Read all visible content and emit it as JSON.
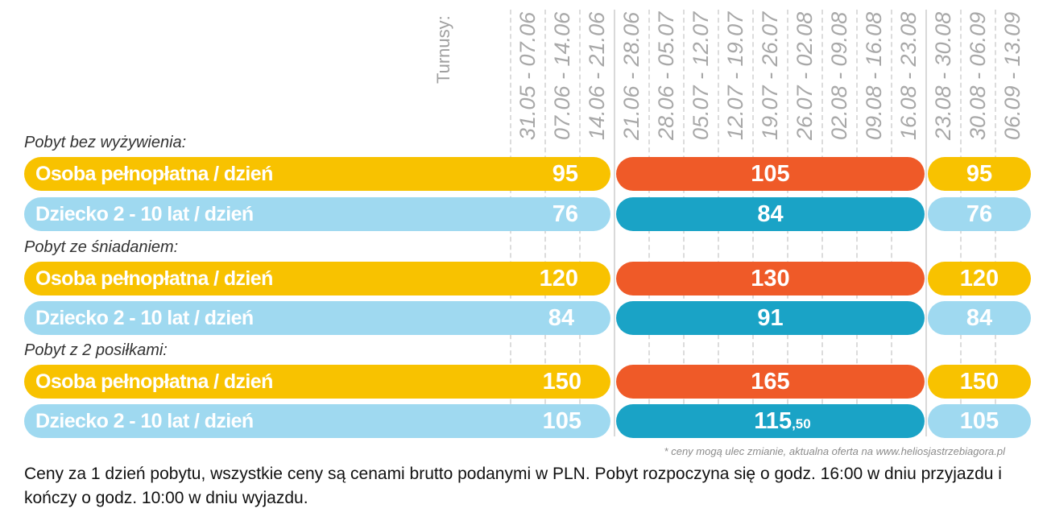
{
  "header": {
    "turnusy_label": "Turnusy:",
    "periods": [
      "31.05 - 07.06",
      "07.06 - 14.06",
      "14.06 - 21.06",
      "21.06 - 28.06",
      "28.06 - 05.07",
      "05.07 - 12.07",
      "12.07 - 19.07",
      "19.07 - 26.07",
      "26.07 - 02.08",
      "02.08 - 09.08",
      "09.08 - 16.08",
      "16.08 - 23.08",
      "23.08 - 30.08",
      "30.08 - 06.09",
      "06.09 - 13.09"
    ]
  },
  "sections": [
    {
      "title": "Pobyt bez wyżywienia:",
      "adult": {
        "label": "Osoba pełnopłatna / dzień",
        "low": "95",
        "high": "105",
        "high_fraction": "",
        "late": "95"
      },
      "child": {
        "label": "Dziecko 2 - 10 lat / dzień",
        "low": "76",
        "high": "84",
        "high_fraction": "",
        "late": "76"
      }
    },
    {
      "title": "Pobyt ze śniadaniem:",
      "adult": {
        "label": "Osoba pełnopłatna / dzień",
        "low": "120",
        "high": "130",
        "high_fraction": "",
        "late": "120"
      },
      "child": {
        "label": "Dziecko 2 - 10 lat / dzień",
        "low": "84",
        "high": "91",
        "high_fraction": "",
        "late": "84"
      }
    },
    {
      "title": "Pobyt z 2 posiłkami:",
      "adult": {
        "label": "Osoba pełnopłatna / dzień",
        "low": "150",
        "high": "165",
        "high_fraction": "",
        "late": "150"
      },
      "child": {
        "label": "Dziecko 2 - 10 lat / dzień",
        "low": "105",
        "high": "115",
        "high_fraction": ",50",
        "late": "105"
      }
    }
  ],
  "note": "* ceny mogą ulec zmianie, aktualna oferta na www.heliosjastrzebiagora.pl",
  "footer": "Ceny za 1 dzień pobytu, wszystkie ceny są cenami brutto podanymi w PLN. Pobyt rozpoczyna się o godz. 16:00 w dniu przyjazdu i kończy o godz. 10:00 w dniu wyjazdu.",
  "colors": {
    "adult_regular": "#f8c200",
    "adult_peak": "#ef5a28",
    "child_regular": "#9fd9f0",
    "child_peak": "#1aa3c6"
  }
}
